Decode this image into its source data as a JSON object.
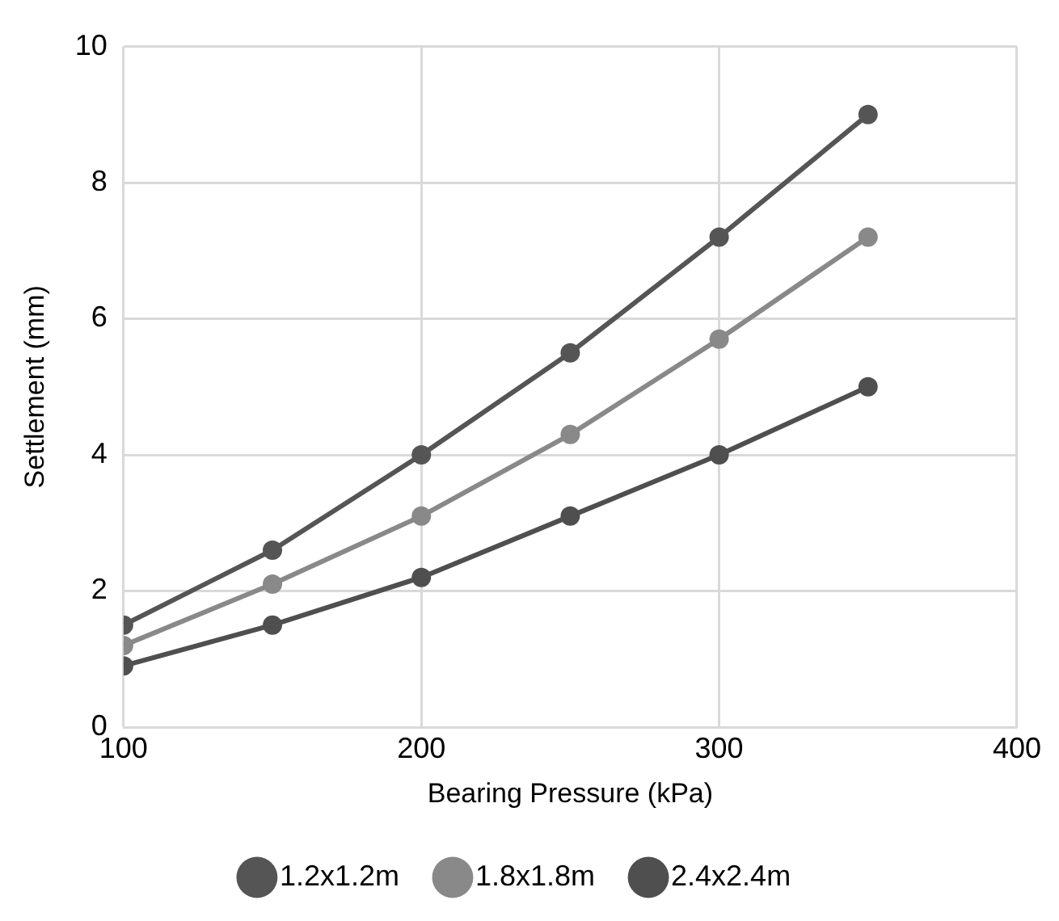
{
  "chart_data": {
    "type": "line",
    "xlabel": "Bearing Pressure (kPa)",
    "ylabel": "Settlement (mm)",
    "x": [
      100,
      150,
      200,
      250,
      300,
      350
    ],
    "series": [
      {
        "name": "1.2x1.2m",
        "color": "#555555",
        "values": [
          1.5,
          2.6,
          4.0,
          5.5,
          7.2,
          9.0
        ]
      },
      {
        "name": "1.8x1.8m",
        "color": "#898989",
        "values": [
          1.2,
          2.1,
          3.1,
          4.3,
          5.7,
          7.2
        ]
      },
      {
        "name": "2.4x2.4m",
        "color": "#4f4f4f",
        "values": [
          0.9,
          1.5,
          2.2,
          3.1,
          4.0,
          5.0
        ]
      }
    ],
    "xlim": [
      100,
      400
    ],
    "xticks": [
      100,
      200,
      300,
      400
    ],
    "ylim": [
      0,
      10
    ],
    "yticks": [
      0,
      2,
      4,
      6,
      8,
      10
    ],
    "grid": true,
    "legend": "bottom",
    "marker": "circle",
    "line_style": "solid"
  }
}
